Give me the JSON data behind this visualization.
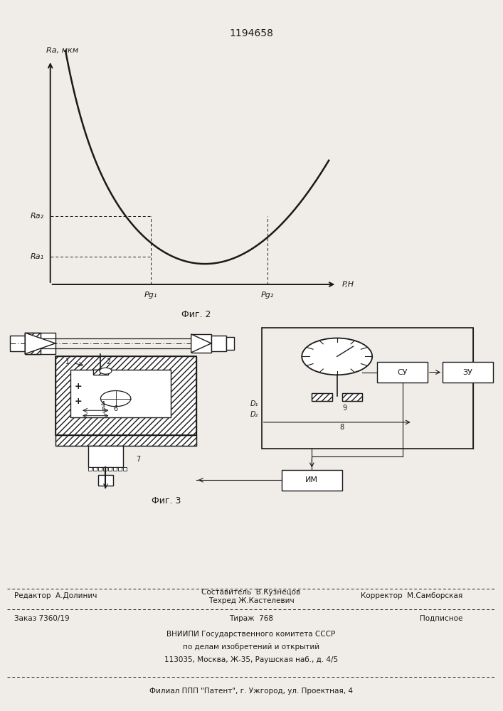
{
  "patent_number": "1194658",
  "fig2_label": "Фиг. 2",
  "fig3_label": "Фиг. 3",
  "ylabel": "Ra, мкм",
  "xlabel": "P,Н",
  "ra2_label": "Ra₂",
  "ra1_label": "Ra₁",
  "pg1_label": "Pg₁",
  "pg2_label": "Pg₂",
  "bg_color": "#f0ede8",
  "line_color": "#1a1a1a",
  "text_color": "#1a1a1a"
}
